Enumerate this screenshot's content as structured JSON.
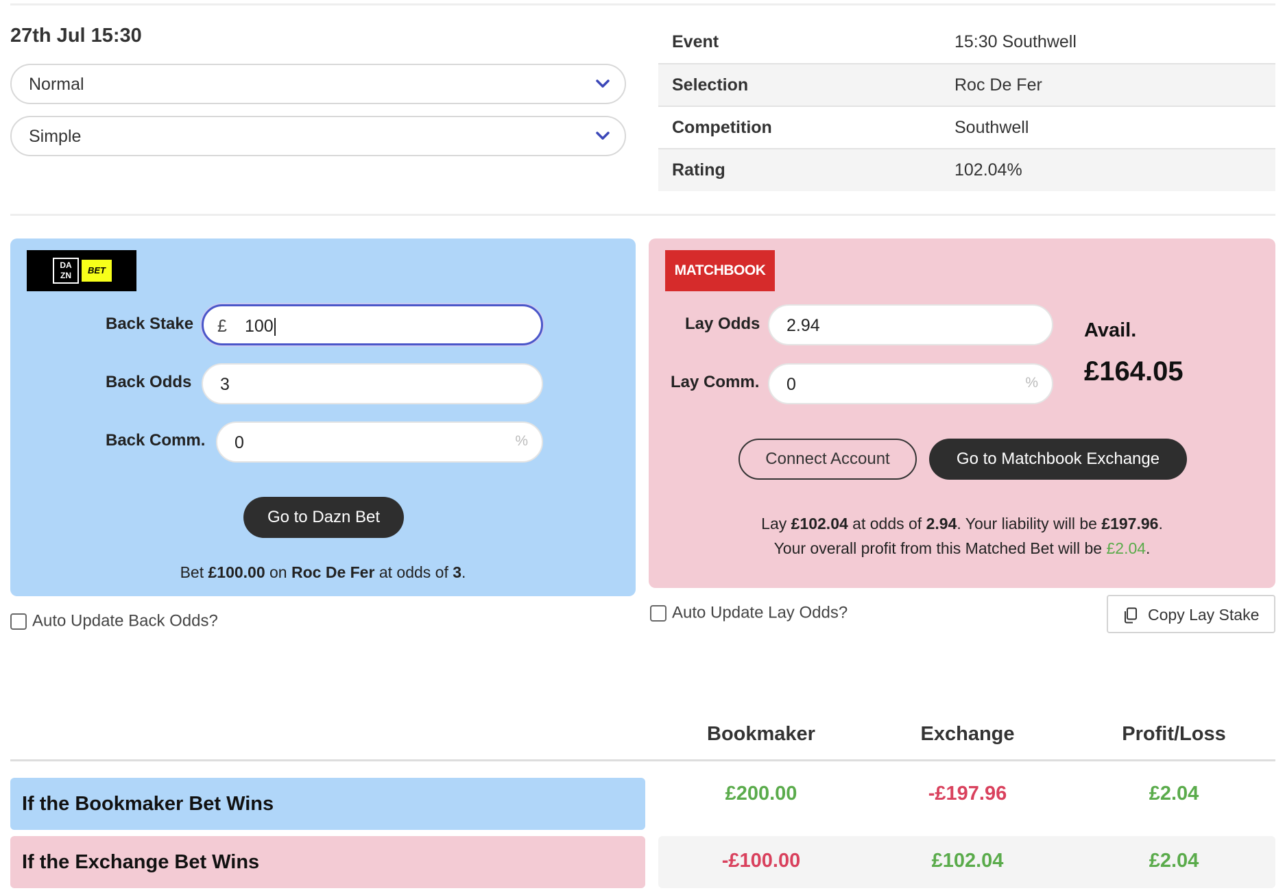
{
  "header": {
    "datetime": "27th Jul 15:30"
  },
  "selects": {
    "mode": "Normal",
    "type": "Simple"
  },
  "info": {
    "rows": [
      {
        "label": "Event",
        "value": "15:30 Southwell"
      },
      {
        "label": "Selection",
        "value": "Roc De Fer"
      },
      {
        "label": "Competition",
        "value": "Southwell"
      },
      {
        "label": "Rating",
        "value": "102.04%"
      }
    ]
  },
  "back": {
    "logo_text_1": "DA",
    "logo_text_2": "ZN",
    "logo_text_bet": "BET",
    "stake_label": "Back Stake",
    "currency": "£",
    "stake_value": "100",
    "odds_label": "Back Odds",
    "odds_value": "3",
    "comm_label": "Back Comm.",
    "comm_value": "0",
    "percent": "%",
    "go_button": "Go to Dazn Bet",
    "summary_pre": "Bet ",
    "summary_stake": "£100.00",
    "summary_mid": " on ",
    "summary_sel": "Roc De Fer",
    "summary_mid2": " at odds of ",
    "summary_odds": "3",
    "summary_end": ".",
    "auto_update": "Auto Update Back Odds?"
  },
  "lay": {
    "logo_text": "MATCHBOOK",
    "odds_label": "Lay Odds",
    "odds_value": "2.94",
    "comm_label": "Lay Comm.",
    "comm_value": "0",
    "percent": "%",
    "avail_label": "Avail.",
    "avail_amount": "£164.05",
    "connect_button": "Connect Account",
    "go_button": "Go to Matchbook Exchange",
    "line1_a": "Lay ",
    "line1_stake": "£102.04",
    "line1_b": " at odds of ",
    "line1_odds": "2.94",
    "line1_c": ". Your liability will be ",
    "line1_liab": "£197.96",
    "line1_d": ".",
    "line2_a": "Your overall profit from this Matched Bet will be ",
    "line2_profit": "£2.04",
    "line2_b": ".",
    "auto_update": "Auto Update Lay Odds?",
    "copy_button": "Copy Lay Stake"
  },
  "results": {
    "headers": [
      "Bookmaker",
      "Exchange",
      "Profit/Loss"
    ],
    "rows": [
      {
        "label": "If the Bookmaker Bet Wins",
        "bookmaker": "£200.00",
        "exchange": "-£197.96",
        "profit": "£2.04"
      },
      {
        "label": "If the Exchange Bet Wins",
        "bookmaker": "-£100.00",
        "exchange": "£102.04",
        "profit": "£2.04"
      }
    ]
  },
  "colors": {
    "back_panel": "#b0d6f9",
    "lay_panel": "#f3cbd4",
    "positive": "#5aab4b",
    "negative": "#d9415d",
    "focus_ring": "#4a56c9"
  }
}
